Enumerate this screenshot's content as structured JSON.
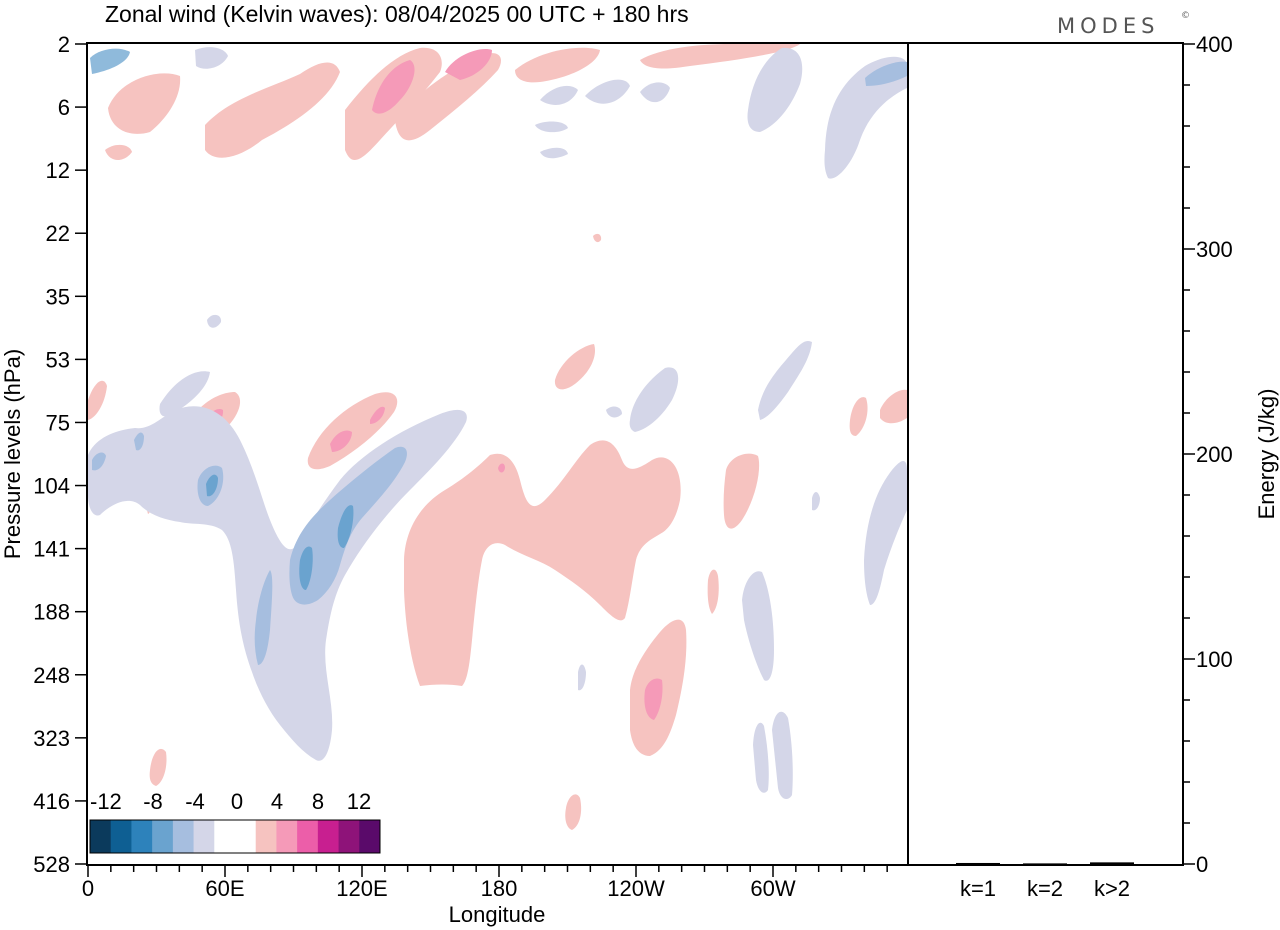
{
  "brand": "MODES",
  "brand_mark": "©",
  "chart_data": [
    {
      "type": "heatmap",
      "title": "Zonal wind (Kelvin waves):  08/04/2025  00 UTC  + 180 hrs",
      "xlabel": "Longitude",
      "ylabel": "Pressure levels (hPa)",
      "x_ticks": [
        "0",
        "60E",
        "120E",
        "180",
        "120W",
        "60W"
      ],
      "y_ticks": [
        "2",
        "6",
        "12",
        "22",
        "35",
        "53",
        "75",
        "104",
        "141",
        "188",
        "248",
        "323",
        "416",
        "528"
      ],
      "y_scale": "log-like (pressure levels, top 2 hPa to bottom 528 hPa)",
      "colorbar": {
        "labels": [
          "-12",
          "-8",
          "-4",
          "0",
          "4",
          "8",
          "12"
        ],
        "colors": [
          "#0b3a5c",
          "#0e5f93",
          "#2d82bb",
          "#6aa3cf",
          "#a6bedf",
          "#d4d6e8",
          "#ffffff",
          "#ffffff",
          "#f6c3c0",
          "#f59ab8",
          "#ec5ea9",
          "#c81f90",
          "#8e1379",
          "#5a0a6a"
        ],
        "placement": "bottom-left inside plot"
      },
      "features": [
        {
          "sign": "negative",
          "max_abs": 8,
          "lon_range": [
            "100E",
            "130E"
          ],
          "level_range": [
            "75",
            "248"
          ]
        },
        {
          "sign": "negative",
          "max_abs": 4,
          "lon_range": [
            "100E",
            "140E"
          ],
          "level_range": [
            "104",
            "323"
          ]
        },
        {
          "sign": "positive",
          "max_abs": 4,
          "lon_range": [
            "150E",
            "160W"
          ],
          "level_range": [
            "104",
            "248"
          ]
        },
        {
          "sign": "positive",
          "max_abs": 8,
          "lon_range": [
            "120W",
            "110W"
          ],
          "level_range": [
            "188",
            "323"
          ]
        },
        {
          "sign": "positive",
          "max_abs": 8,
          "lon_range": [
            "20E",
            "190E"
          ],
          "level_range": [
            "2",
            "12"
          ]
        },
        {
          "sign": "negative",
          "max_abs": 4,
          "lon_range": [
            "80W",
            "0"
          ],
          "level_range": [
            "2",
            "12"
          ]
        }
      ]
    },
    {
      "type": "bar",
      "ylabel": "Energy (J/kg)",
      "categories": [
        "k=1",
        "k=2",
        "k>2"
      ],
      "values": [
        0.5,
        0.3,
        0.8
      ],
      "ylim": [
        0,
        400
      ],
      "y_ticks": [
        "0",
        "100",
        "200",
        "300",
        "400"
      ]
    }
  ]
}
